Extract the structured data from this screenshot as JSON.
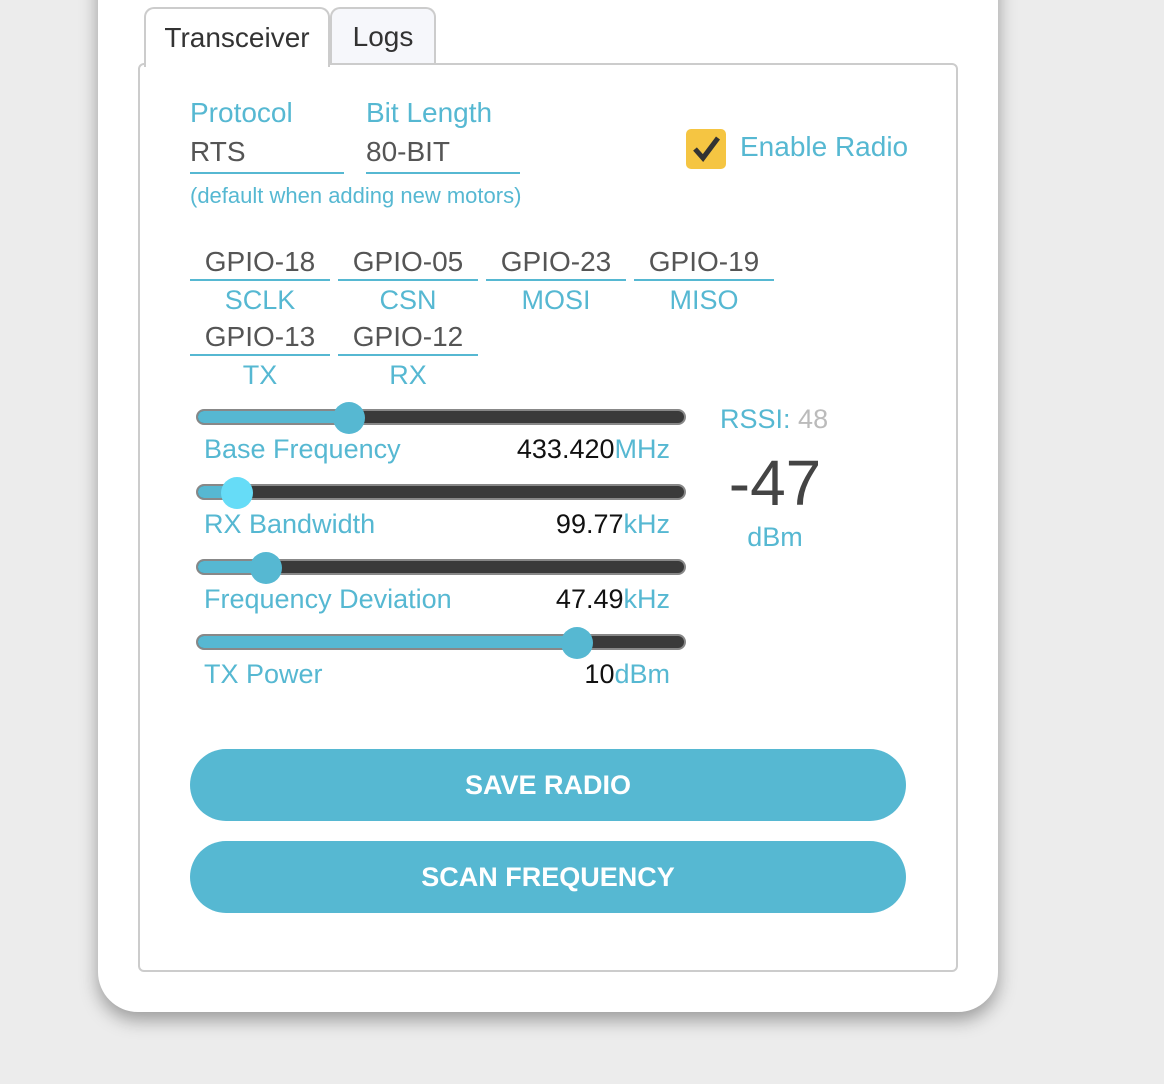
{
  "tabs": [
    {
      "label": "Transceiver",
      "active": true
    },
    {
      "label": "Logs",
      "active": false
    }
  ],
  "protocol": {
    "label": "Protocol",
    "value": "RTS"
  },
  "bit_length": {
    "label": "Bit Length",
    "value": "80-BIT"
  },
  "hint": "(default when adding new motors)",
  "enable_radio": {
    "label": "Enable Radio",
    "checked": true
  },
  "pins": [
    {
      "gpio": "GPIO-18",
      "name": "SCLK"
    },
    {
      "gpio": "GPIO-05",
      "name": "CSN"
    },
    {
      "gpio": "GPIO-23",
      "name": "MOSI"
    },
    {
      "gpio": "GPIO-19",
      "name": "MISO"
    },
    {
      "gpio": "GPIO-13",
      "name": "TX"
    },
    {
      "gpio": "GPIO-12",
      "name": "RX"
    }
  ],
  "sliders": [
    {
      "label": "Base Frequency",
      "value": "433.420",
      "unit": "MHz",
      "level_pct": 31,
      "thumb_color": "#56b8d2"
    },
    {
      "label": "RX Bandwidth",
      "value": "99.77",
      "unit": "kHz",
      "level_pct": 8,
      "thumb_color": "#66dcf7"
    },
    {
      "label": "Frequency Deviation",
      "value": "47.49",
      "unit": "kHz",
      "level_pct": 14,
      "thumb_color": "#56b8d2"
    },
    {
      "label": "TX Power",
      "value": "10",
      "unit": "dBm",
      "level_pct": 78,
      "thumb_color": "#56b8d2"
    }
  ],
  "rssi": {
    "label": "RSSI:",
    "count": "48",
    "value": "-47",
    "unit": "dBm"
  },
  "buttons": {
    "save": "SAVE RADIO",
    "scan": "SCAN FREQUENCY"
  },
  "colors": {
    "accent": "#56b8d2",
    "checkbox": "#f5c542"
  }
}
